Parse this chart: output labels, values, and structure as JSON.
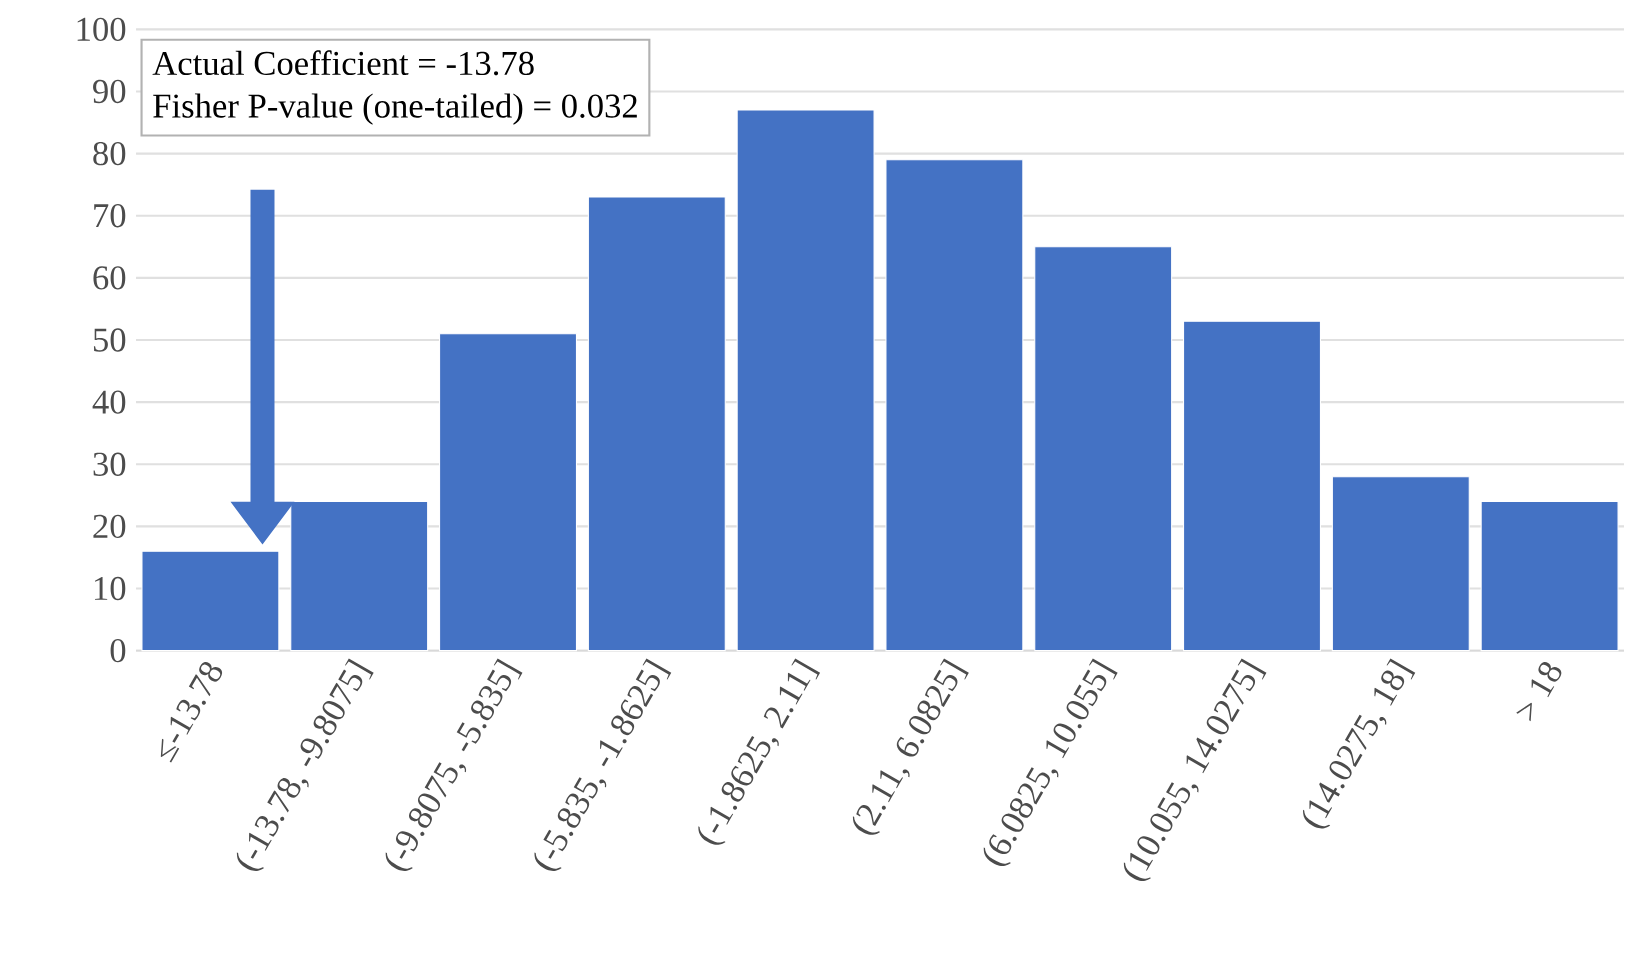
{
  "chart_data": {
    "type": "bar",
    "categories": [
      "≤-13.78",
      "(-13.78, -9.8075]",
      "(-9.8075, -5.835]",
      "(-5.835, -1.8625]",
      "(-1.8625, 2.11]",
      "(2.11, 6.0825]",
      "(6.0825, 10.055]",
      "(10.055, 14.0275]",
      "(14.0275, 18]",
      "> 18"
    ],
    "values": [
      16,
      24,
      51,
      73,
      87,
      79,
      65,
      53,
      28,
      24
    ],
    "color": "#4472c4",
    "ylim": [
      0,
      100
    ],
    "yticks": [
      0,
      10,
      20,
      30,
      40,
      50,
      60,
      70,
      80,
      90,
      100
    ],
    "grid": "y",
    "annotations": [
      "Actual Coefficient = -13.78",
      "Fisher P-value (one-tailed) = 0.032"
    ]
  }
}
